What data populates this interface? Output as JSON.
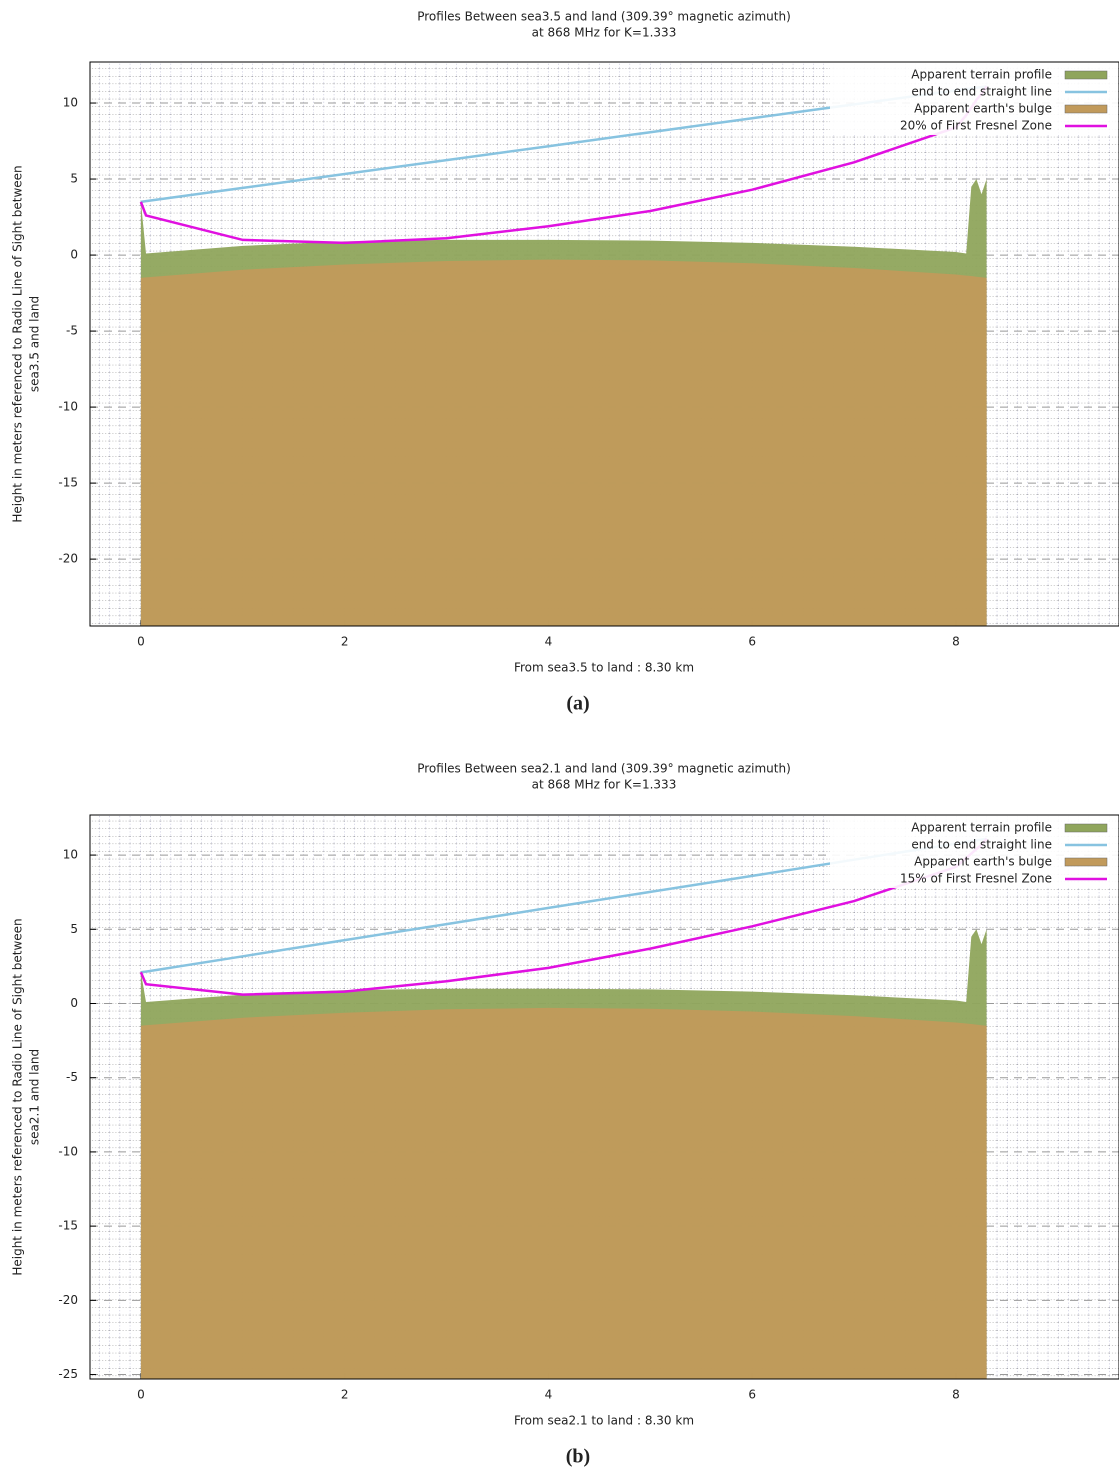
{
  "chart_data": [
    {
      "type": "line",
      "title": [
        "Profiles Between sea3.5 and land (309.39° magnetic azimuth)",
        "at 868 MHz for K=1.333"
      ],
      "ylabel": [
        "Height in meters referenced to Radio Line of Sight between",
        "sea3.5 and land"
      ],
      "xlabel": "From sea3.5 to land : 8.30 km",
      "caption": "(a)",
      "legend": "upper right",
      "grid": true,
      "xlim": [
        -0.5,
        9.6
      ],
      "xticks": [
        0,
        2,
        4,
        6,
        8
      ],
      "ylim": [
        -24.4,
        12.7
      ],
      "yticks": [
        -20,
        -15,
        -10,
        -5,
        0,
        5,
        10
      ],
      "x": [
        0,
        0.05,
        1,
        2,
        3,
        4,
        5,
        6,
        7,
        8,
        8.1,
        8.15,
        8.2,
        8.25,
        8.3
      ],
      "series": [
        {
          "name": "Apparent terrain profile",
          "color": "#8fa55c",
          "fill": true,
          "values": [
            3.5,
            0.1,
            0.6,
            0.9,
            1.0,
            1.0,
            0.95,
            0.8,
            0.55,
            0.2,
            0.1,
            4.5,
            5,
            4,
            5
          ]
        },
        {
          "name": "end to end straight line",
          "color": "#87c3e0",
          "fill": false,
          "values": [
            3.5,
            3.55,
            4.42,
            5.33,
            6.25,
            7.16,
            8.08,
            9.0,
            9.91,
            10.83,
            10.92,
            10.96,
            11.01,
            11.05,
            11.1
          ]
        },
        {
          "name": "Apparent earth's bulge",
          "color": "#c19a5b",
          "fill": true,
          "values": [
            -1.5,
            -1.47,
            -0.96,
            -0.62,
            -0.39,
            -0.3,
            -0.35,
            -0.54,
            -0.85,
            -1.28,
            -1.35,
            -1.38,
            -1.42,
            -1.46,
            -1.5
          ]
        },
        {
          "name": "20% of First Fresnel Zone",
          "color": "#e010e0",
          "fill": false,
          "values": [
            3.5,
            2.6,
            1.0,
            0.8,
            1.1,
            1.9,
            2.9,
            4.3,
            6.1,
            8.4,
            9.2,
            9.7,
            10.2,
            10.6,
            11.1
          ]
        }
      ]
    },
    {
      "type": "line",
      "title": [
        "Profiles Between sea2.1 and land (309.39° magnetic azimuth)",
        "at 868 MHz for K=1.333"
      ],
      "ylabel": [
        "Height in meters referenced to Radio Line of Sight between",
        "sea2.1 and land"
      ],
      "xlabel": "From sea2.1 to land : 8.30 km",
      "caption": "(b)",
      "legend": "upper right",
      "grid": true,
      "xlim": [
        -0.5,
        9.6
      ],
      "xticks": [
        0,
        2,
        4,
        6,
        8
      ],
      "ylim": [
        -25.3,
        12.7
      ],
      "yticks": [
        -25,
        -20,
        -15,
        -10,
        -5,
        0,
        5,
        10
      ],
      "x": [
        0,
        0.05,
        1,
        2,
        3,
        4,
        5,
        6,
        7,
        8,
        8.1,
        8.15,
        8.2,
        8.25,
        8.3
      ],
      "series": [
        {
          "name": "Apparent terrain profile",
          "color": "#8fa55c",
          "fill": true,
          "values": [
            2.1,
            0.1,
            0.6,
            0.9,
            1.0,
            1.0,
            0.95,
            0.8,
            0.55,
            0.2,
            0.1,
            4.5,
            5,
            4,
            5
          ]
        },
        {
          "name": "end to end straight line",
          "color": "#87c3e0",
          "fill": false,
          "values": [
            2.1,
            2.15,
            3.18,
            4.27,
            5.35,
            6.44,
            7.52,
            8.6,
            9.69,
            10.77,
            10.88,
            10.94,
            10.99,
            11.04,
            11.1
          ]
        },
        {
          "name": "Apparent earth's bulge",
          "color": "#c19a5b",
          "fill": true,
          "values": [
            -1.5,
            -1.47,
            -0.96,
            -0.62,
            -0.39,
            -0.3,
            -0.35,
            -0.54,
            -0.85,
            -1.28,
            -1.35,
            -1.38,
            -1.42,
            -1.46,
            -1.5
          ]
        },
        {
          "name": "15% of First Fresnel Zone",
          "color": "#e010e0",
          "fill": false,
          "values": [
            2.1,
            1.3,
            0.6,
            0.8,
            1.5,
            2.4,
            3.7,
            5.2,
            6.9,
            9.2,
            9.8,
            10.1,
            10.4,
            10.7,
            11.1
          ]
        }
      ]
    }
  ]
}
